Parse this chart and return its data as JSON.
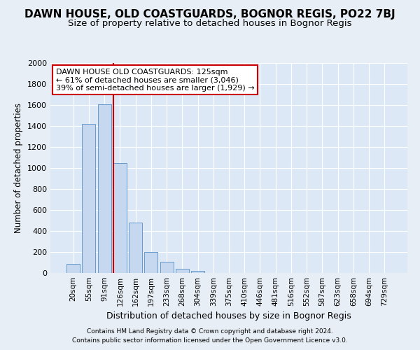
{
  "title": "DAWN HOUSE, OLD COASTGUARDS, BOGNOR REGIS, PO22 7BJ",
  "subtitle": "Size of property relative to detached houses in Bognor Regis",
  "xlabel": "Distribution of detached houses by size in Bognor Regis",
  "ylabel": "Number of detached properties",
  "bin_labels": [
    "20sqm",
    "55sqm",
    "91sqm",
    "126sqm",
    "162sqm",
    "197sqm",
    "233sqm",
    "268sqm",
    "304sqm",
    "339sqm",
    "375sqm",
    "410sqm",
    "446sqm",
    "481sqm",
    "516sqm",
    "552sqm",
    "587sqm",
    "623sqm",
    "658sqm",
    "694sqm",
    "729sqm"
  ],
  "bar_heights": [
    85,
    1420,
    1610,
    1050,
    480,
    200,
    105,
    40,
    20,
    0,
    0,
    0,
    0,
    0,
    0,
    0,
    0,
    0,
    0,
    0,
    0
  ],
  "bar_color": "#c5d8ef",
  "bar_edgecolor": "#6699cc",
  "vline_bin_index": 3,
  "vline_color": "#cc0000",
  "annotation_text": "DAWN HOUSE OLD COASTGUARDS: 125sqm\n← 61% of detached houses are smaller (3,046)\n39% of semi-detached houses are larger (1,929) →",
  "annotation_box_edgecolor": "#cc0000",
  "annotation_box_facecolor": "#ffffff",
  "footnote1": "Contains HM Land Registry data © Crown copyright and database right 2024.",
  "footnote2": "Contains public sector information licensed under the Open Government Licence v3.0.",
  "ylim": [
    0,
    2000
  ],
  "yticks": [
    0,
    200,
    400,
    600,
    800,
    1000,
    1200,
    1400,
    1600,
    1800,
    2000
  ],
  "background_color": "#e8eef5",
  "plot_background": "#dce8f5",
  "grid_color": "#ffffff",
  "title_fontsize": 11,
  "subtitle_fontsize": 9.5,
  "xlabel_fontsize": 9,
  "ylabel_fontsize": 8.5
}
